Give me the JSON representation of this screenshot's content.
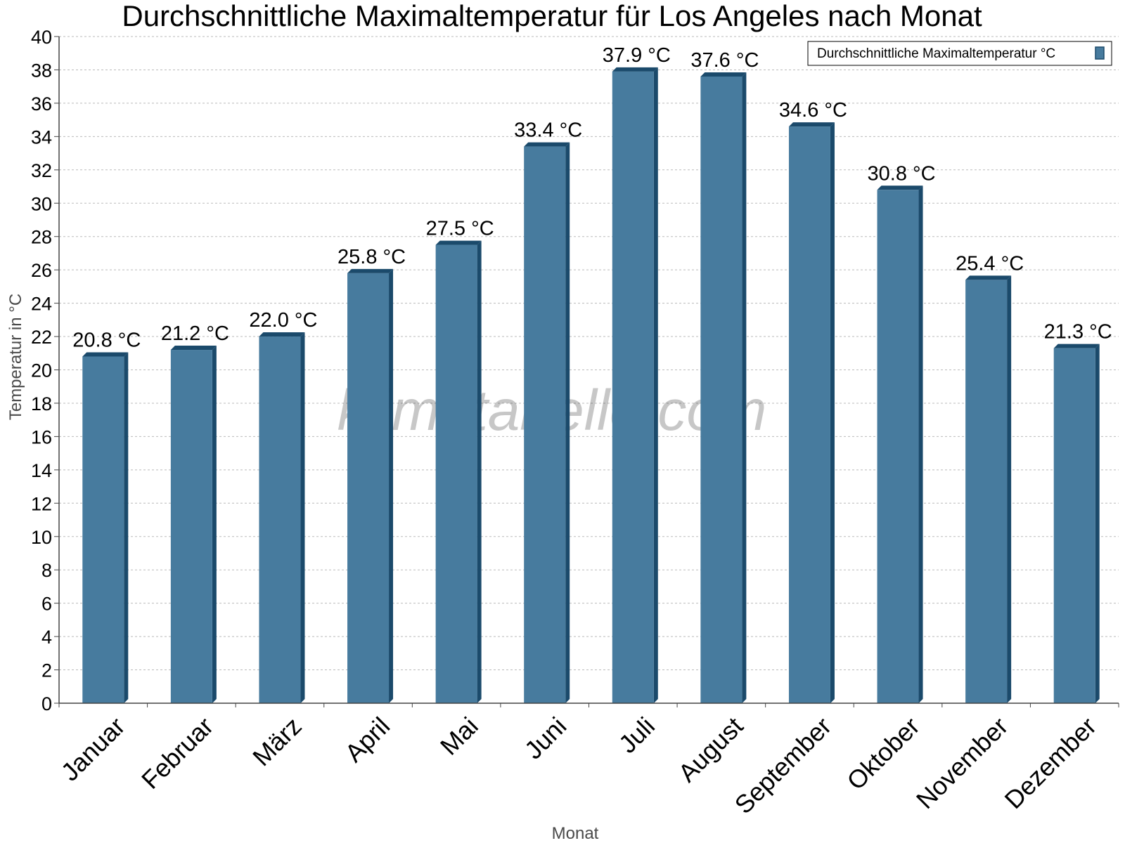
{
  "chart_data": {
    "type": "bar",
    "title": "Durchschnittliche Maximaltemperatur für Los Angeles nach Monat",
    "xlabel": "Monat",
    "ylabel": "Temperatur in °C",
    "categories": [
      "Januar",
      "Februar",
      "März",
      "April",
      "Mai",
      "Juni",
      "Juli",
      "August",
      "September",
      "Oktober",
      "November",
      "Dezember"
    ],
    "series": [
      {
        "name": "Durchschnittliche Maximaltemperatur °C",
        "values": [
          20.8,
          21.2,
          22.0,
          25.8,
          27.5,
          33.4,
          37.9,
          37.6,
          34.6,
          30.8,
          25.4,
          21.3
        ],
        "data_labels": [
          "20.8 °C",
          "21.2 °C",
          "22.0 °C",
          "25.8 °C",
          "27.5 °C",
          "33.4 °C",
          "37.9 °C",
          "37.6 °C",
          "34.6 °C",
          "30.8 °C",
          "25.4 °C",
          "21.3 °C"
        ]
      }
    ],
    "ylim": [
      0,
      40
    ],
    "yticks": [
      "0",
      "2",
      "4",
      "6",
      "8",
      "10",
      "12",
      "14",
      "16",
      "18",
      "20",
      "22",
      "24",
      "26",
      "28",
      "30",
      "32",
      "34",
      "36",
      "38",
      "40"
    ],
    "grid": true,
    "legend_position": "top-right",
    "watermark": "klimatabelle.com",
    "colors": {
      "bar": "#477b9e",
      "bar_dark": "#1b4a6b",
      "grid": "#bbbbbb",
      "axis": "#444444"
    }
  }
}
